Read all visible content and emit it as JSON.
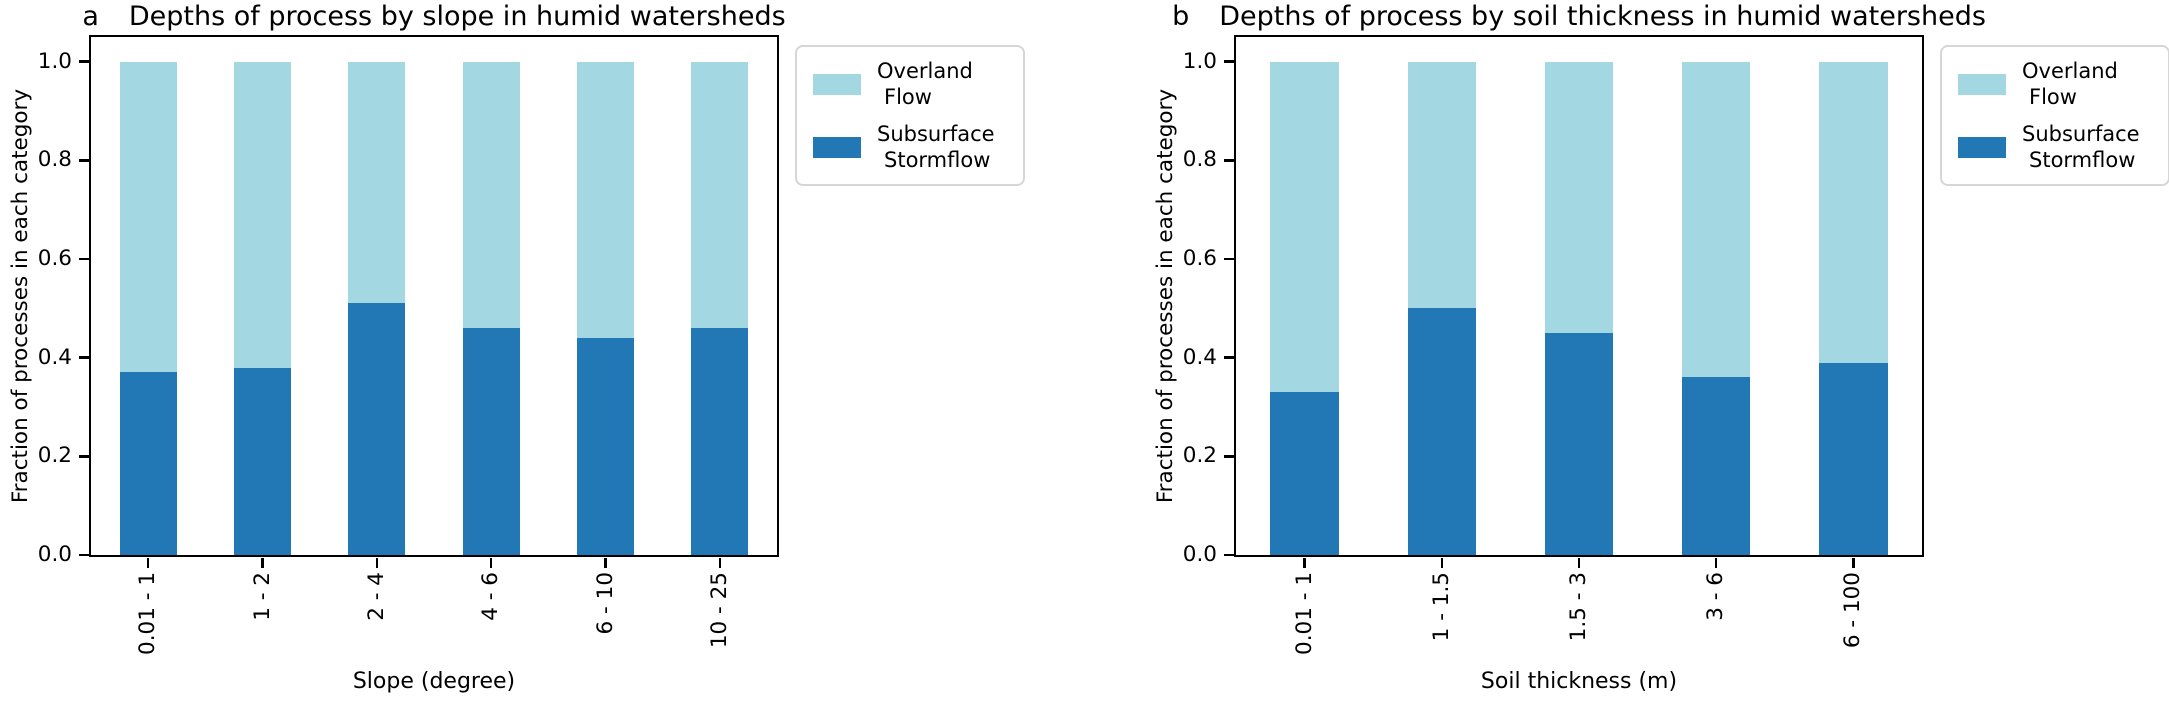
{
  "figure": {
    "background": "#ffffff",
    "axis_color": "#000000"
  },
  "chart_data": [
    {
      "type": "bar",
      "stacked": true,
      "panel_letter": "a",
      "title": "Depths of process by slope in humid watersheds",
      "xlabel": "Slope (degree)",
      "ylabel": "Fraction of processes in each category",
      "categories": [
        "0.01 - 1",
        "1 - 2",
        "2 - 4",
        "4 - 6",
        "6 - 10",
        "10 - 25"
      ],
      "series": [
        {
          "name": "Subsurface Stormflow",
          "color": "#2278b5",
          "values": [
            0.37,
            0.38,
            0.51,
            0.46,
            0.44,
            0.46
          ]
        },
        {
          "name": "Overland Flow",
          "color": "#a3d8e3",
          "values": [
            0.63,
            0.62,
            0.49,
            0.54,
            0.56,
            0.54
          ]
        }
      ],
      "ylim": [
        0,
        1.05
      ],
      "yticks": [
        "0.0",
        "0.2",
        "0.4",
        "0.6",
        "0.8",
        "1.0"
      ],
      "grid": false,
      "bar_width_fraction": 0.5,
      "legend": {
        "position": "outside-right",
        "entries": [
          {
            "lines": [
              "Overland",
              "Flow"
            ],
            "color": "#a3d8e3"
          },
          {
            "lines": [
              "Subsurface",
              "Stormflow"
            ],
            "color": "#2278b5"
          }
        ]
      }
    },
    {
      "type": "bar",
      "stacked": true,
      "panel_letter": "b",
      "title": "Depths of process by soil thickness in humid watersheds",
      "xlabel": "Soil thickness (m)",
      "ylabel": "Fraction of processes in each category",
      "categories": [
        "0.01 - 1",
        "1 - 1.5",
        "1.5 - 3",
        "3 - 6",
        "6 - 100"
      ],
      "series": [
        {
          "name": "Subsurface Stormflow",
          "color": "#2278b5",
          "values": [
            0.33,
            0.5,
            0.45,
            0.36,
            0.39
          ]
        },
        {
          "name": "Overland Flow",
          "color": "#a3d8e3",
          "values": [
            0.67,
            0.5,
            0.55,
            0.64,
            0.61
          ]
        }
      ],
      "ylim": [
        0,
        1.05
      ],
      "yticks": [
        "0.0",
        "0.2",
        "0.4",
        "0.6",
        "0.8",
        "1.0"
      ],
      "grid": false,
      "bar_width_fraction": 0.5,
      "legend": {
        "position": "outside-right",
        "entries": [
          {
            "lines": [
              "Overland",
              "Flow"
            ],
            "color": "#a3d8e3"
          },
          {
            "lines": [
              "Subsurface",
              "Stormflow"
            ],
            "color": "#2278b5"
          }
        ]
      }
    }
  ]
}
